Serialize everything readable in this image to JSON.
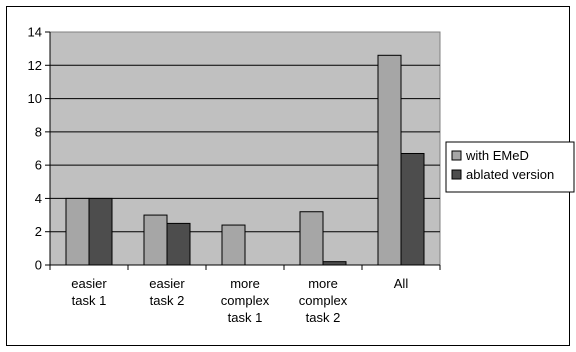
{
  "chart_data": {
    "type": "bar",
    "categories": [
      [
        "easier",
        "task 1"
      ],
      [
        "easier",
        "task 2"
      ],
      [
        "more",
        "complex",
        "task 1"
      ],
      [
        "more",
        "complex",
        "task 2"
      ],
      [
        "All"
      ]
    ],
    "series": [
      {
        "name": "with EMeD",
        "color": "#a6a6a6",
        "values": [
          4.0,
          3.0,
          2.4,
          3.2,
          12.6
        ]
      },
      {
        "name": "ablated version",
        "color": "#4d4d4d",
        "values": [
          4.0,
          2.5,
          0.0,
          0.2,
          6.7
        ]
      }
    ],
    "ylim": [
      0,
      14
    ],
    "yticks": [
      "0",
      "2",
      "4",
      "6",
      "8",
      "10",
      "12",
      "14"
    ],
    "grid": true,
    "plot_background": "#c0c0c0",
    "legend_position": "right",
    "title": "",
    "xlabel": "",
    "ylabel": ""
  }
}
